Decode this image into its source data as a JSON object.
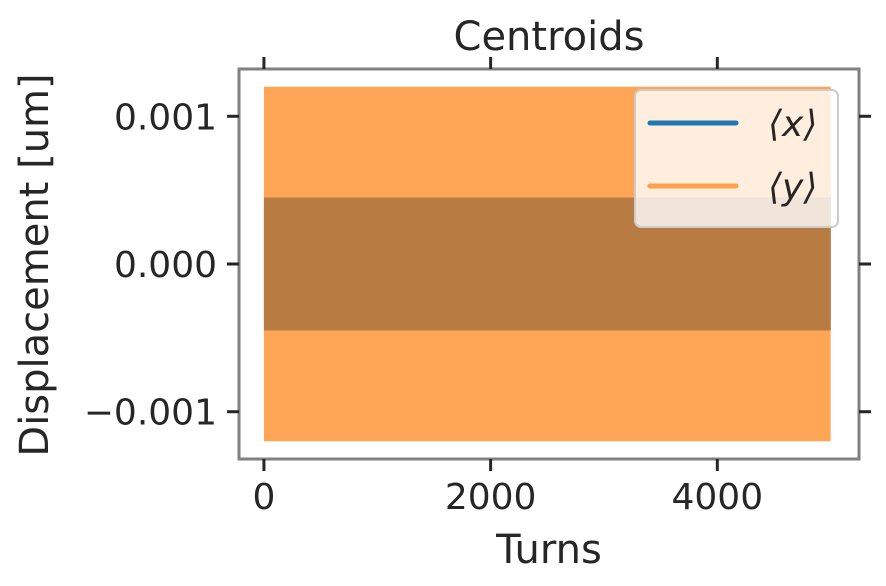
{
  "chart_data": {
    "type": "line",
    "title": "Centroids",
    "xlabel": "Turns",
    "ylabel": "Displacement [um]",
    "xlim": [
      -220,
      5250
    ],
    "ylim": [
      -0.00132,
      0.00132
    ],
    "xticks": [
      0,
      2000,
      4000
    ],
    "xtick_labels": [
      "0",
      "2000",
      "4000"
    ],
    "yticks": [
      0.001,
      0.0,
      -0.001
    ],
    "ytick_labels": [
      "0.001",
      "0.000",
      "−0.001"
    ],
    "grid": false,
    "legend_position": "top-right",
    "series": [
      {
        "name": "⟨x⟩",
        "color": "#1f77b4",
        "x_range": [
          0,
          5000
        ],
        "envelope": [
          -0.00045,
          0.00045
        ]
      },
      {
        "name": "⟨y⟩",
        "color": "#ff7f0e",
        "alpha": 0.7,
        "x_range": [
          0,
          5000
        ],
        "envelope": [
          -0.0012,
          0.0012
        ]
      }
    ],
    "overlap_color": "#b87b42"
  }
}
